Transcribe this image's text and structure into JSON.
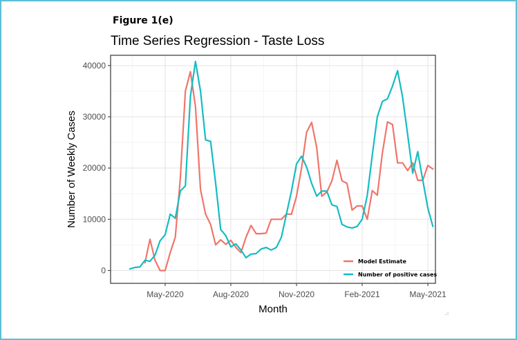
{
  "figure_label": "Figure 1(e)",
  "chart_data": {
    "type": "line",
    "title": "Time Series Regression - Taste Loss",
    "xlabel": "Month",
    "ylabel": "Number of Weekly Cases",
    "x_ticks": [
      "May-2020",
      "Aug-2020",
      "Nov-2020",
      "Feb-2021",
      "May-2021"
    ],
    "y_ticks": [
      "0",
      "10000",
      "20000",
      "30000",
      "40000"
    ],
    "ylim": [
      -2500,
      42000
    ],
    "xlim": [
      -3.8,
      60.5
    ],
    "grid": true,
    "legend_position": "bottom-right",
    "colors": {
      "Model Estimate": "#f0756b",
      "Number of positive cases": "#14bcc2"
    },
    "series": [
      {
        "name": "Model Estimate",
        "x": [
          3,
          4,
          5,
          6,
          7,
          8,
          9,
          10,
          11,
          12,
          13,
          14,
          15,
          16,
          17,
          18,
          19,
          20,
          21,
          22,
          23,
          24,
          25,
          26,
          27,
          28,
          29,
          30,
          31,
          32,
          33,
          34,
          35,
          36,
          37,
          38,
          39,
          40,
          41,
          42,
          43,
          44,
          45,
          46,
          47,
          48,
          49,
          50,
          51,
          52,
          53,
          54,
          55,
          56,
          57,
          58,
          59,
          60
        ],
        "values": [
          1500,
          6100,
          2000,
          0,
          0,
          3500,
          6500,
          18000,
          35000,
          38800,
          32000,
          15800,
          11000,
          9000,
          5000,
          6000,
          5100,
          5900,
          4500,
          3500,
          6500,
          8800,
          7200,
          7200,
          7300,
          10000,
          10000,
          10000,
          11000,
          11000,
          14500,
          20000,
          27000,
          28900,
          24000,
          14500,
          15300,
          17500,
          21500,
          17500,
          17000,
          11800,
          12600,
          12600,
          10000,
          15600,
          14700,
          23000,
          29000,
          28500,
          21000,
          21000,
          19500,
          21000,
          17600,
          17600,
          20500,
          19800
        ]
      },
      {
        "name": "Number of positive cases",
        "x": [
          0,
          1,
          2,
          3,
          4,
          5,
          6,
          7,
          8,
          9,
          10,
          11,
          12,
          13,
          14,
          15,
          16,
          17,
          18,
          19,
          20,
          21,
          22,
          23,
          24,
          25,
          26,
          27,
          28,
          29,
          30,
          31,
          32,
          33,
          34,
          35,
          36,
          37,
          38,
          39,
          40,
          41,
          42,
          43,
          44,
          45,
          46,
          47,
          48,
          49,
          50,
          51,
          52,
          53,
          54,
          55,
          56,
          57,
          58,
          59,
          60
        ],
        "values": [
          300,
          600,
          700,
          2000,
          1800,
          3000,
          5800,
          7000,
          11000,
          10200,
          15500,
          16500,
          34000,
          40800,
          35000,
          25500,
          25200,
          17000,
          8000,
          6800,
          4600,
          5200,
          4000,
          2500,
          3200,
          3300,
          4200,
          4500,
          4000,
          4500,
          6500,
          11000,
          15500,
          20800,
          22300,
          20200,
          17000,
          14500,
          15500,
          15500,
          12800,
          12500,
          9000,
          8500,
          8300,
          8600,
          10000,
          14600,
          22500,
          30000,
          33000,
          33500,
          36000,
          39000,
          33800,
          26500,
          19000,
          23200,
          17600,
          12200,
          8600
        ]
      }
    ]
  }
}
